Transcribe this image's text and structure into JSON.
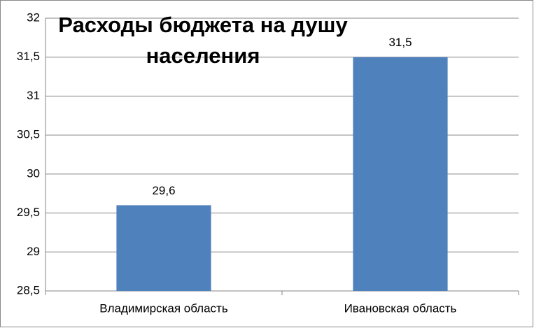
{
  "chart_data": {
    "type": "bar",
    "title": "Расходы бюджета на душу населения",
    "categories": [
      "Владимирская область",
      "Ивановская область"
    ],
    "values": [
      29.6,
      31.5
    ],
    "value_labels": [
      "29,6",
      "31,5"
    ],
    "color": "#4f81bd",
    "ylim": [
      28.5,
      32
    ],
    "yticks": [
      {
        "value": 28.5,
        "label": "28,5"
      },
      29,
      {
        "value": 29.5,
        "label": "29,5"
      },
      30,
      {
        "value": 30.5,
        "label": "30,5"
      },
      31,
      {
        "value": 31.5,
        "label": "31,5"
      },
      32
    ],
    "grid": true
  }
}
